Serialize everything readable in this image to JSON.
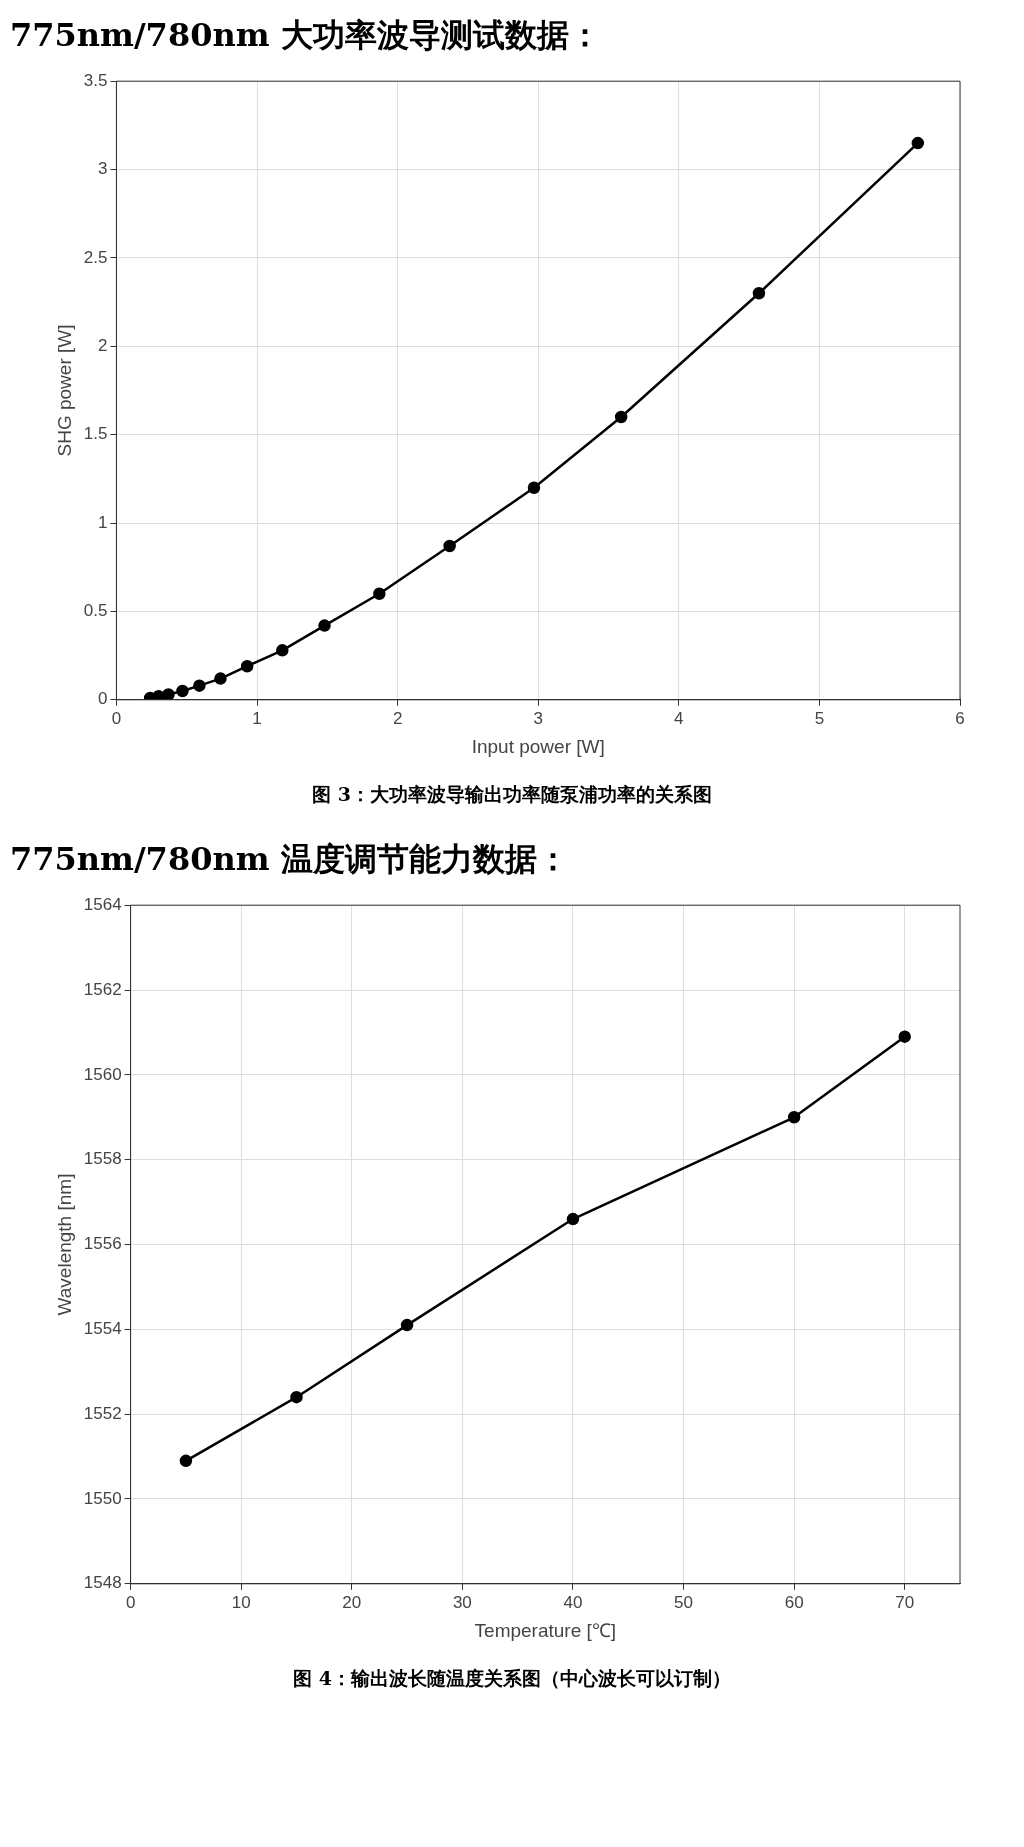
{
  "chart_data": [
    {
      "type": "line",
      "title": "775nm/780nm 大功率波导测试数据：",
      "xlabel": "Input power [W]",
      "ylabel": "SHG power [W]",
      "x": [
        0.24,
        0.3,
        0.37,
        0.47,
        0.59,
        0.74,
        0.93,
        1.18,
        1.48,
        1.87,
        2.37,
        2.97,
        3.59,
        4.57,
        5.7
      ],
      "series": [
        {
          "color": "#000000",
          "values": [
            0.01,
            0.02,
            0.03,
            0.05,
            0.08,
            0.12,
            0.19,
            0.28,
            0.42,
            0.6,
            0.87,
            1.2,
            1.6,
            2.3,
            3.15
          ]
        }
      ],
      "xlim": [
        0,
        6
      ],
      "ylim": [
        0,
        3.5
      ],
      "xticks": [
        0,
        1,
        2,
        3,
        4,
        5,
        6
      ],
      "yticks": [
        0,
        0.5,
        1,
        1.5,
        2,
        2.5,
        3,
        3.5
      ],
      "grid": true,
      "marker": "circle",
      "annotations": [
        "图 3：大功率波导输出功率随泵浦功率的关系图"
      ]
    },
    {
      "type": "line",
      "title": "775nm/780nm 温度调节能力数据：",
      "xlabel": "Temperature [℃]",
      "ylabel": "Wavelength [nm]",
      "x": [
        5,
        15,
        25,
        40,
        60,
        70
      ],
      "series": [
        {
          "color": "#000000",
          "values": [
            1550.9,
            1552.4,
            1554.1,
            1556.6,
            1559.0,
            1560.9
          ]
        }
      ],
      "xlim": [
        0,
        75
      ],
      "ylim": [
        1548,
        1564
      ],
      "xticks": [
        0,
        10,
        20,
        30,
        40,
        50,
        60,
        70
      ],
      "yticks": [
        1548,
        1550,
        1552,
        1554,
        1556,
        1558,
        1560,
        1562,
        1564
      ],
      "grid": true,
      "marker": "circle",
      "annotations": [
        "图 4：输出波长随温度关系图（中心波长可以订制）"
      ]
    }
  ]
}
